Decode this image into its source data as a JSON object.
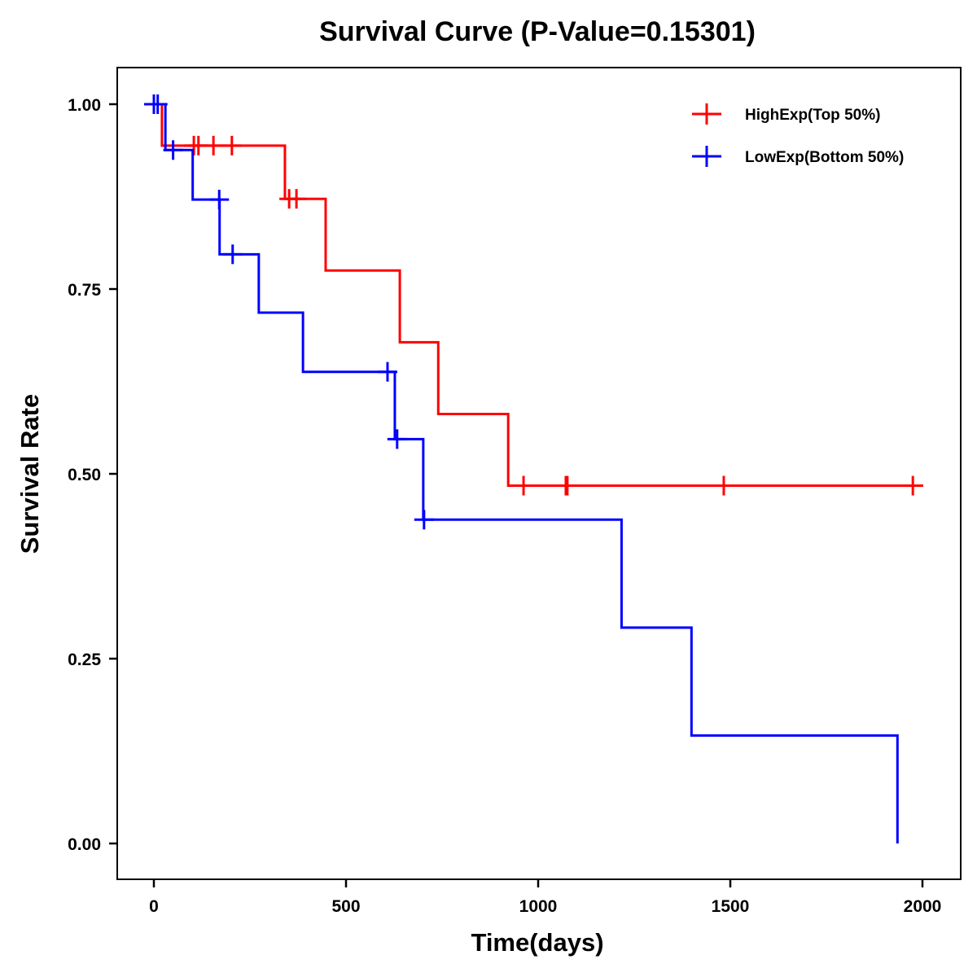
{
  "chart_data": {
    "type": "line",
    "subtype": "kaplan-meier-step",
    "title": "Survival Curve (P-Value=0.15301)",
    "xlabel": "Time(days)",
    "ylabel": "Survival Rate",
    "xlim": [
      -90,
      2090
    ],
    "ylim": [
      -0.048,
      1.05
    ],
    "xticks": [
      0,
      500,
      1000,
      1500,
      2000
    ],
    "xtick_labels": [
      "0",
      "500",
      "1000",
      "1500",
      "2000"
    ],
    "yticks": [
      0,
      0.25,
      0.5,
      0.75,
      1.0
    ],
    "ytick_labels": [
      "0.00",
      "0.25",
      "0.50",
      "0.75",
      "1.00"
    ],
    "grid": false,
    "legend_position": "top-right",
    "series": [
      {
        "name": "HighExp(Top 50%)",
        "color": "#ff0000",
        "end_time": 2002,
        "steps": [
          {
            "time": 0,
            "survival": 1.0
          },
          {
            "time": 21,
            "survival": 0.944
          },
          {
            "time": 341,
            "survival": 0.872
          },
          {
            "time": 447,
            "survival": 0.775
          },
          {
            "time": 640,
            "survival": 0.678
          },
          {
            "time": 740,
            "survival": 0.581
          },
          {
            "time": 922,
            "survival": 0.484
          }
        ],
        "censored": [
          104,
          116,
          155,
          203,
          352,
          371,
          962,
          1072,
          1076,
          1483,
          1975
        ]
      },
      {
        "name": "LowExp(Bottom 50%)",
        "color": "#0000ff",
        "end_time": 1935,
        "steps": [
          {
            "time": 0,
            "survival": 1.0
          },
          {
            "time": 30,
            "survival": 0.938
          },
          {
            "time": 101,
            "survival": 0.871
          },
          {
            "time": 171,
            "survival": 0.797
          },
          {
            "time": 273,
            "survival": 0.718
          },
          {
            "time": 388,
            "survival": 0.638
          },
          {
            "time": 627,
            "survival": 0.547
          },
          {
            "time": 701,
            "survival": 0.438
          },
          {
            "time": 1217,
            "survival": 0.292
          },
          {
            "time": 1399,
            "survival": 0.146
          },
          {
            "time": 1935,
            "survival": 0.0
          }
        ],
        "censored": [
          0,
          10,
          50,
          170,
          205,
          608,
          633,
          703
        ]
      }
    ]
  }
}
